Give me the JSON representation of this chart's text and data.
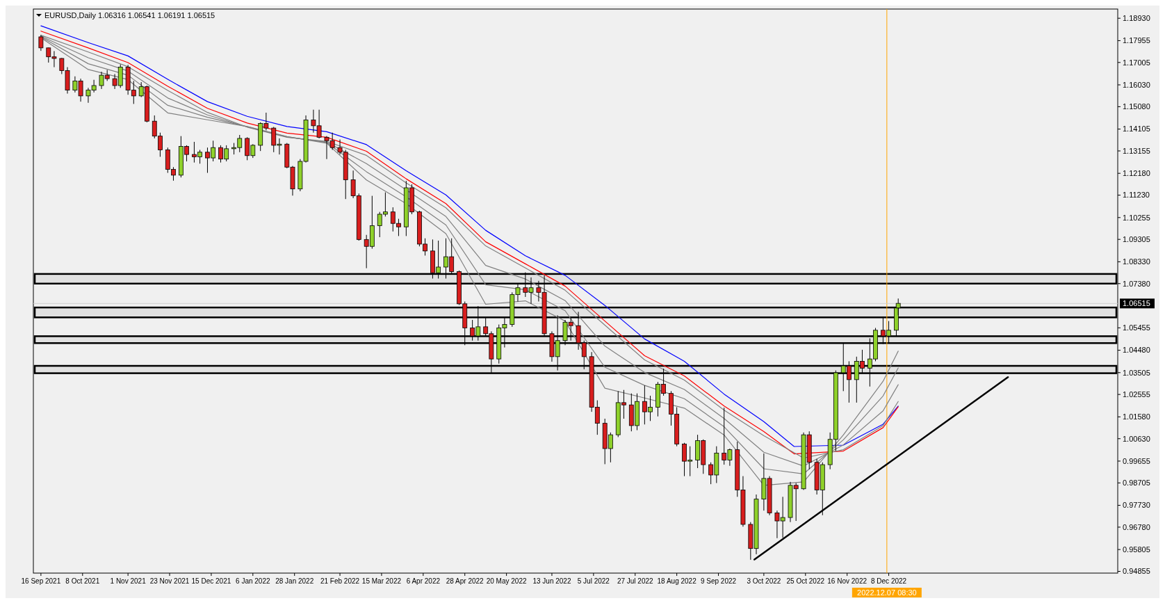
{
  "chart_data": {
    "type": "candlestick",
    "title": "EURUSD,Daily 1.06316 1.06541 1.06191 1.06515",
    "x": [
      "2021-09-16",
      "2021-09-20",
      "2021-09-23",
      "2021-09-27",
      "2021-09-30",
      "2021-10-04",
      "2021-10-07",
      "2021-10-11",
      "2021-10-14",
      "2021-10-18",
      "2021-10-21",
      "2021-10-25",
      "2021-10-28",
      "2021-11-01",
      "2021-11-04",
      "2021-11-08",
      "2021-11-11",
      "2021-11-15",
      "2021-11-18",
      "2021-11-22",
      "2021-11-25",
      "2021-11-29",
      "2021-12-02",
      "2021-12-06",
      "2021-12-09",
      "2021-12-13",
      "2021-12-16",
      "2021-12-20",
      "2021-12-23",
      "2021-12-27",
      "2021-12-30",
      "2022-01-03",
      "2022-01-06",
      "2022-01-10",
      "2022-01-13",
      "2022-01-17",
      "2022-01-20",
      "2022-01-24",
      "2022-01-27",
      "2022-01-31",
      "2022-02-03",
      "2022-02-07",
      "2022-02-10",
      "2022-02-14",
      "2022-02-17",
      "2022-02-21",
      "2022-02-24",
      "2022-02-28",
      "2022-03-03",
      "2022-03-07",
      "2022-03-10",
      "2022-03-14",
      "2022-03-17",
      "2022-03-21",
      "2022-03-24",
      "2022-03-28",
      "2022-03-31",
      "2022-04-04",
      "2022-04-07",
      "2022-04-11",
      "2022-04-14",
      "2022-04-18",
      "2022-04-21",
      "2022-04-25",
      "2022-04-28",
      "2022-05-02",
      "2022-05-05",
      "2022-05-09",
      "2022-05-12",
      "2022-05-16",
      "2022-05-19",
      "2022-05-23",
      "2022-05-26",
      "2022-05-30",
      "2022-06-02",
      "2022-06-06",
      "2022-06-09",
      "2022-06-13",
      "2022-06-16",
      "2022-06-20",
      "2022-06-23",
      "2022-06-27",
      "2022-06-30",
      "2022-07-04",
      "2022-07-07",
      "2022-07-11",
      "2022-07-14",
      "2022-07-18",
      "2022-07-21",
      "2022-07-25",
      "2022-07-28",
      "2022-08-01",
      "2022-08-04",
      "2022-08-08",
      "2022-08-11",
      "2022-08-15",
      "2022-08-18",
      "2022-08-22",
      "2022-08-25",
      "2022-08-29",
      "2022-09-01",
      "2022-09-05",
      "2022-09-08",
      "2022-09-12",
      "2022-09-15",
      "2022-09-19",
      "2022-09-22",
      "2022-09-26",
      "2022-09-29",
      "2022-10-03",
      "2022-10-06",
      "2022-10-10",
      "2022-10-13",
      "2022-10-17",
      "2022-10-20",
      "2022-10-24",
      "2022-10-27",
      "2022-10-31",
      "2022-11-03",
      "2022-11-07",
      "2022-11-10",
      "2022-11-14",
      "2022-11-17",
      "2022-11-21",
      "2022-11-24",
      "2022-11-28",
      "2022-12-01",
      "2022-12-05",
      "2022-12-08",
      "2022-12-12",
      "2022-12-13"
    ],
    "ohlc": [
      [
        1.1812,
        1.182,
        1.1751,
        1.1764
      ],
      [
        1.1764,
        1.1765,
        1.17,
        1.1725
      ],
      [
        1.1725,
        1.175,
        1.168,
        1.1718
      ],
      [
        1.1718,
        1.172,
        1.165,
        1.1665
      ],
      [
        1.1665,
        1.168,
        1.1565,
        1.158
      ],
      [
        1.158,
        1.164,
        1.157,
        1.162
      ],
      [
        1.162,
        1.163,
        1.153,
        1.1555
      ],
      [
        1.1555,
        1.159,
        1.1525,
        1.158
      ],
      [
        1.158,
        1.1625,
        1.157,
        1.16
      ],
      [
        1.16,
        1.166,
        1.1585,
        1.1645
      ],
      [
        1.1645,
        1.1668,
        1.162,
        1.163
      ],
      [
        1.163,
        1.165,
        1.1585,
        1.16
      ],
      [
        1.16,
        1.1692,
        1.159,
        1.168
      ],
      [
        1.168,
        1.169,
        1.156,
        1.158
      ],
      [
        1.158,
        1.162,
        1.152,
        1.1555
      ],
      [
        1.1555,
        1.1615,
        1.155,
        1.1595
      ],
      [
        1.1595,
        1.16,
        1.144,
        1.1445
      ],
      [
        1.1445,
        1.147,
        1.137,
        1.138
      ],
      [
        1.138,
        1.1395,
        1.129,
        1.132
      ],
      [
        1.132,
        1.133,
        1.122,
        1.1235
      ],
      [
        1.1235,
        1.1245,
        1.1186,
        1.121
      ],
      [
        1.121,
        1.138,
        1.12,
        1.1335
      ],
      [
        1.1335,
        1.134,
        1.127,
        1.13
      ],
      [
        1.13,
        1.1355,
        1.1265,
        1.129
      ],
      [
        1.129,
        1.132,
        1.126,
        1.131
      ],
      [
        1.131,
        1.133,
        1.122,
        1.1285
      ],
      [
        1.1285,
        1.136,
        1.127,
        1.133
      ],
      [
        1.133,
        1.134,
        1.1265,
        1.128
      ],
      [
        1.128,
        1.134,
        1.127,
        1.1325
      ],
      [
        1.1325,
        1.135,
        1.13,
        1.133
      ],
      [
        1.133,
        1.1385,
        1.131,
        1.137
      ],
      [
        1.137,
        1.1375,
        1.1275,
        1.1295
      ],
      [
        1.1295,
        1.1345,
        1.1285,
        1.134
      ],
      [
        1.134,
        1.144,
        1.1315,
        1.1435
      ],
      [
        1.1435,
        1.1482,
        1.1405,
        1.1415
      ],
      [
        1.1415,
        1.142,
        1.131,
        1.134
      ],
      [
        1.134,
        1.137,
        1.13,
        1.1345
      ],
      [
        1.1345,
        1.135,
        1.124,
        1.1245
      ],
      [
        1.1245,
        1.125,
        1.1121,
        1.115
      ],
      [
        1.115,
        1.128,
        1.114,
        1.127
      ],
      [
        1.127,
        1.147,
        1.1265,
        1.145
      ],
      [
        1.145,
        1.1495,
        1.1395,
        1.1425
      ],
      [
        1.1425,
        1.1495,
        1.137,
        1.1375
      ],
      [
        1.1375,
        1.138,
        1.128,
        1.136
      ],
      [
        1.136,
        1.1395,
        1.132,
        1.133
      ],
      [
        1.133,
        1.1365,
        1.13,
        1.131
      ],
      [
        1.131,
        1.132,
        1.1106,
        1.119
      ],
      [
        1.119,
        1.123,
        1.111,
        1.112
      ],
      [
        1.112,
        1.113,
        1.0925,
        1.093
      ],
      [
        1.093,
        1.095,
        1.0805,
        1.09
      ],
      [
        1.09,
        1.112,
        1.089,
        1.099
      ],
      [
        1.099,
        1.105,
        1.094,
        1.104
      ],
      [
        1.104,
        1.1135,
        1.103,
        1.105
      ],
      [
        1.105,
        1.107,
        1.0965,
        1.1
      ],
      [
        1.1,
        1.102,
        1.0945,
        1.0985
      ],
      [
        1.0985,
        1.1185,
        1.0945,
        1.1155
      ],
      [
        1.1155,
        1.117,
        1.104,
        1.105
      ],
      [
        1.105,
        1.1055,
        1.09,
        1.091
      ],
      [
        1.091,
        1.0935,
        1.086,
        1.088
      ],
      [
        1.088,
        1.093,
        1.076,
        1.0785
      ],
      [
        1.0785,
        1.0925,
        1.076,
        1.081
      ],
      [
        1.081,
        1.0935,
        1.076,
        1.0855
      ],
      [
        1.0855,
        1.0935,
        1.078,
        1.079
      ],
      [
        1.079,
        1.0795,
        1.0645,
        1.065
      ],
      [
        1.065,
        1.066,
        1.047,
        1.0545
      ],
      [
        1.0545,
        1.058,
        1.049,
        1.051
      ],
      [
        1.051,
        1.064,
        1.049,
        1.055
      ],
      [
        1.055,
        1.059,
        1.051,
        1.052
      ],
      [
        1.052,
        1.053,
        1.035,
        1.041
      ],
      [
        1.041,
        1.056,
        1.039,
        1.0545
      ],
      [
        1.0545,
        1.059,
        1.046,
        1.056
      ],
      [
        1.056,
        1.07,
        1.055,
        1.069
      ],
      [
        1.069,
        1.0735,
        1.066,
        1.072
      ],
      [
        1.072,
        1.0787,
        1.068,
        1.07
      ],
      [
        1.07,
        1.0765,
        1.065,
        1.072
      ],
      [
        1.072,
        1.075,
        1.066,
        1.07
      ],
      [
        1.07,
        1.0775,
        1.051,
        1.052
      ],
      [
        1.052,
        1.053,
        1.0398,
        1.042
      ],
      [
        1.042,
        1.06,
        1.036,
        1.049
      ],
      [
        1.049,
        1.058,
        1.047,
        1.057
      ],
      [
        1.057,
        1.059,
        1.049,
        1.0555
      ],
      [
        1.0555,
        1.0615,
        1.045,
        1.048
      ],
      [
        1.048,
        1.049,
        1.0365,
        1.042
      ],
      [
        1.042,
        1.044,
        1.018,
        1.02
      ],
      [
        1.02,
        1.023,
        1.008,
        1.013
      ],
      [
        1.013,
        1.015,
        0.9952,
        1.002
      ],
      [
        1.002,
        1.009,
        0.996,
        1.008
      ],
      [
        1.008,
        1.027,
        1.007,
        1.022
      ],
      [
        1.022,
        1.0275,
        1.015,
        1.021
      ],
      [
        1.021,
        1.026,
        1.0095,
        1.012
      ],
      [
        1.012,
        1.026,
        1.01,
        1.0225
      ],
      [
        1.0225,
        1.0295,
        1.0125,
        1.018
      ],
      [
        1.018,
        1.025,
        1.014,
        1.02
      ],
      [
        1.02,
        1.031,
        1.016,
        1.03
      ],
      [
        1.03,
        1.0368,
        1.025,
        1.026
      ],
      [
        1.026,
        1.027,
        1.012,
        1.017
      ],
      [
        1.017,
        1.02,
        1.003,
        1.004
      ],
      [
        1.004,
        1.0045,
        0.99,
        0.9965
      ],
      [
        0.9965,
        1.003,
        0.99,
        0.997
      ],
      [
        0.997,
        1.008,
        0.9935,
        1.0055
      ],
      [
        1.0055,
        1.006,
        0.991,
        0.995
      ],
      [
        0.995,
        0.996,
        0.9865,
        0.9905
      ],
      [
        0.9905,
        1.003,
        0.987,
        1.0
      ],
      [
        1.0,
        1.0198,
        0.995,
        0.997
      ],
      [
        0.997,
        1.002,
        0.9945,
        1.0015
      ],
      [
        1.0015,
        1.005,
        0.981,
        0.984
      ],
      [
        0.984,
        0.99,
        0.968,
        0.969
      ],
      [
        0.969,
        0.97,
        0.9536,
        0.9585
      ],
      [
        0.9585,
        0.982,
        0.956,
        0.98
      ],
      [
        0.98,
        0.9999,
        0.975,
        0.989
      ],
      [
        0.989,
        0.99,
        0.973,
        0.974
      ],
      [
        0.974,
        0.975,
        0.963,
        0.9705
      ],
      [
        0.9705,
        0.981,
        0.9632,
        0.972
      ],
      [
        0.972,
        0.9875,
        0.97,
        0.986
      ],
      [
        0.986,
        0.987,
        0.9705,
        0.9845
      ],
      [
        0.9845,
        1.009,
        0.984,
        1.008
      ],
      [
        1.008,
        1.0095,
        0.993,
        0.996
      ],
      [
        0.996,
        0.9975,
        0.982,
        0.984
      ],
      [
        0.984,
        0.996,
        0.973,
        0.995
      ],
      [
        0.995,
        1.009,
        0.993,
        1.006
      ],
      [
        1.006,
        1.036,
        1.001,
        1.035
      ],
      [
        1.035,
        1.0481,
        1.027,
        1.038
      ],
      [
        1.038,
        1.04,
        1.022,
        1.032
      ],
      [
        1.032,
        1.042,
        1.022,
        1.04
      ],
      [
        1.04,
        1.045,
        1.035,
        1.037
      ],
      [
        1.037,
        1.05,
        1.029,
        1.041
      ],
      [
        1.041,
        1.0545,
        1.04,
        1.0535
      ],
      [
        1.0535,
        1.0595,
        1.0475,
        1.051
      ],
      [
        1.051,
        1.0575,
        1.048,
        1.0535
      ],
      [
        1.0535,
        1.064,
        1.051,
        1.0632
      ],
      [
        1.0632,
        1.0673,
        1.06,
        1.0652
      ]
    ],
    "series": [
      {
        "type": "line",
        "color": "#0000ff",
        "x": [
          "2021-09-16",
          "2021-10-11",
          "2021-11-01",
          "2021-11-22",
          "2021-12-13",
          "2022-01-03",
          "2022-01-24",
          "2022-02-14",
          "2022-03-07",
          "2022-03-28",
          "2022-04-18",
          "2022-05-09",
          "2022-05-30",
          "2022-06-20",
          "2022-07-11",
          "2022-08-01",
          "2022-08-22",
          "2022-09-12",
          "2022-10-03",
          "2022-10-19",
          "2022-11-14",
          "2022-12-05",
          "2022-12-13"
        ],
        "values": [
          1.186,
          1.1787,
          1.1729,
          1.1627,
          1.153,
          1.1466,
          1.1422,
          1.1399,
          1.1343,
          1.1229,
          1.1124,
          1.097,
          1.0859,
          1.0774,
          1.0643,
          1.0497,
          1.04,
          1.0257,
          1.0137,
          1.0029,
          1.0035,
          1.0126,
          1.0205
        ]
      },
      {
        "type": "line",
        "color": "#ff0000",
        "x": [
          "2021-09-16",
          "2021-10-11",
          "2021-11-01",
          "2021-11-22",
          "2021-12-13",
          "2022-01-03",
          "2022-01-24",
          "2022-02-14",
          "2022-03-07",
          "2022-03-28",
          "2022-04-18",
          "2022-05-09",
          "2022-05-30",
          "2022-06-20",
          "2022-07-11",
          "2022-08-01",
          "2022-08-22",
          "2022-09-12",
          "2022-10-03",
          "2022-10-19",
          "2022-11-14",
          "2022-12-05",
          "2022-12-13"
        ],
        "values": [
          1.1837,
          1.1764,
          1.17,
          1.1597,
          1.1501,
          1.1437,
          1.1393,
          1.1375,
          1.1314,
          1.1194,
          1.1086,
          1.092,
          1.0824,
          1.0727,
          1.0575,
          1.0424,
          1.0336,
          1.0205,
          1.0094,
          0.9997,
          1.0009,
          1.0111,
          1.0202
        ]
      },
      {
        "type": "line",
        "color": "#808080",
        "x": [
          "2021-09-16",
          "2021-10-11",
          "2021-11-01",
          "2021-11-22",
          "2021-12-13",
          "2022-01-03",
          "2022-01-24",
          "2022-02-14",
          "2022-03-07",
          "2022-03-28",
          "2022-04-18",
          "2022-05-09",
          "2022-05-30",
          "2022-06-20",
          "2022-07-11",
          "2022-08-01",
          "2022-08-22",
          "2022-09-12",
          "2022-10-03",
          "2022-10-24",
          "2022-11-14",
          "2022-12-05",
          "2022-12-13"
        ],
        "values": [
          1.1819,
          1.1746,
          1.1682,
          1.1579,
          1.1483,
          1.1419,
          1.1375,
          1.1357,
          1.1296,
          1.1176,
          1.1068,
          1.0902,
          1.0806,
          1.0709,
          1.0557,
          1.0406,
          1.0318,
          1.0187,
          1.0076,
          0.9979,
          1.0015,
          1.012,
          1.0225
        ]
      },
      {
        "type": "line",
        "color": "#808080",
        "x": [
          "2021-09-16",
          "2021-10-11",
          "2021-11-01",
          "2021-11-22",
          "2021-12-13",
          "2022-01-03",
          "2022-01-24",
          "2022-02-14",
          "2022-03-07",
          "2022-03-28",
          "2022-04-18",
          "2022-05-09",
          "2022-05-30",
          "2022-06-20",
          "2022-07-11",
          "2022-08-01",
          "2022-08-22",
          "2022-09-12",
          "2022-10-03",
          "2022-10-24",
          "2022-11-14",
          "2022-12-05",
          "2022-12-13"
        ],
        "values": [
          1.1815,
          1.1721,
          1.1663,
          1.1546,
          1.1472,
          1.142,
          1.1376,
          1.1354,
          1.126,
          1.1146,
          1.103,
          1.0817,
          1.0758,
          1.0664,
          1.0466,
          1.0351,
          1.0277,
          1.0151,
          1.0004,
          0.9944,
          1.0036,
          1.0184,
          1.0298
        ]
      },
      {
        "type": "line",
        "color": "#808080",
        "x": [
          "2021-09-16",
          "2021-10-11",
          "2021-11-01",
          "2021-11-22",
          "2021-12-13",
          "2022-01-03",
          "2022-01-24",
          "2022-02-14",
          "2022-03-07",
          "2022-03-28",
          "2022-04-18",
          "2022-05-09",
          "2022-05-30",
          "2022-06-20",
          "2022-07-11",
          "2022-08-01",
          "2022-08-22",
          "2022-09-12",
          "2022-10-03",
          "2022-10-24",
          "2022-11-14",
          "2022-12-05",
          "2022-12-13"
        ],
        "values": [
          1.1812,
          1.1695,
          1.1645,
          1.1514,
          1.1462,
          1.1421,
          1.1377,
          1.1352,
          1.1225,
          1.1116,
          1.0993,
          1.0733,
          1.0711,
          1.062,
          1.0374,
          1.0295,
          1.0237,
          1.0115,
          0.9932,
          0.991,
          1.0058,
          1.0249,
          1.0371
        ]
      },
      {
        "type": "line",
        "color": "#808080",
        "x": [
          "2021-09-16",
          "2021-10-11",
          "2021-11-01",
          "2021-11-22",
          "2021-12-13",
          "2022-01-03",
          "2022-01-24",
          "2022-02-14",
          "2022-03-07",
          "2022-03-28",
          "2022-04-18",
          "2022-05-09",
          "2022-05-30",
          "2022-06-20",
          "2022-07-11",
          "2022-08-01",
          "2022-08-22",
          "2022-09-12",
          "2022-10-03",
          "2022-10-24",
          "2022-11-14",
          "2022-12-05",
          "2022-12-13"
        ],
        "values": [
          1.1808,
          1.167,
          1.1626,
          1.1481,
          1.1451,
          1.1422,
          1.1378,
          1.1349,
          1.1189,
          1.1086,
          1.0955,
          1.0648,
          1.0663,
          1.0575,
          1.0283,
          1.024,
          1.0196,
          1.0079,
          0.986,
          0.9875,
          1.0079,
          1.0313,
          1.0444
        ]
      },
      {
        "type": "line",
        "color": "#000000",
        "x": [
          "2022-09-28",
          "2023-02-09"
        ],
        "values": [
          0.9537,
          1.0331
        ]
      }
    ],
    "xlim": [
      "2021-09-12",
      "2023-04-08"
    ],
    "xticks": [
      {
        "value": "2021-09-16",
        "label": "16 Sep 2021"
      },
      {
        "value": "2021-10-08",
        "label": "8 Oct 2021"
      },
      {
        "value": "2021-11-01",
        "label": "1 Nov 2021"
      },
      {
        "value": "2021-11-23",
        "label": "23 Nov 2021"
      },
      {
        "value": "2021-12-15",
        "label": "15 Dec 2021"
      },
      {
        "value": "2022-01-06",
        "label": "6 Jan 2022"
      },
      {
        "value": "2022-01-28",
        "label": "28 Jan 2022"
      },
      {
        "value": "2022-02-21",
        "label": "21 Feb 2022"
      },
      {
        "value": "2022-03-15",
        "label": "15 Mar 2022"
      },
      {
        "value": "2022-04-06",
        "label": "6 Apr 2022"
      },
      {
        "value": "2022-04-28",
        "label": "28 Apr 2022"
      },
      {
        "value": "2022-05-20",
        "label": "20 May 2022"
      },
      {
        "value": "2022-06-13",
        "label": "13 Jun 2022"
      },
      {
        "value": "2022-07-05",
        "label": "5 Jul 2022"
      },
      {
        "value": "2022-07-27",
        "label": "27 Jul 2022"
      },
      {
        "value": "2022-08-18",
        "label": "18 Aug 2022"
      },
      {
        "value": "2022-09-09",
        "label": "9 Sep 2022"
      },
      {
        "value": "2022-10-03",
        "label": "3 Oct 2022"
      },
      {
        "value": "2022-10-25",
        "label": "25 Oct 2022"
      },
      {
        "value": "2022-11-16",
        "label": "16 Nov 2022"
      },
      {
        "value": "2022-12-08",
        "label": "8 Dec 2022"
      }
    ],
    "ylim": [
      0.9478,
      1.1933
    ],
    "yticks": [
      {
        "value": 1.1893,
        "label": "1.18930"
      },
      {
        "value": 1.17955,
        "label": "1.17955"
      },
      {
        "value": 1.17005,
        "label": "1.17005"
      },
      {
        "value": 1.1603,
        "label": "1.16030"
      },
      {
        "value": 1.1508,
        "label": "1.15080"
      },
      {
        "value": 1.14105,
        "label": "1.14105"
      },
      {
        "value": 1.13155,
        "label": "1.13155"
      },
      {
        "value": 1.1218,
        "label": "1.12180"
      },
      {
        "value": 1.1123,
        "label": "1.11230"
      },
      {
        "value": 1.10255,
        "label": "1.10255"
      },
      {
        "value": 1.09305,
        "label": "1.09305"
      },
      {
        "value": 1.0833,
        "label": "1.08330"
      },
      {
        "value": 1.0738,
        "label": "1.07380"
      },
      {
        "value": 1.05455,
        "label": "1.05455"
      },
      {
        "value": 1.0448,
        "label": "1.04480"
      },
      {
        "value": 1.03505,
        "label": "1.03505"
      },
      {
        "value": 1.02555,
        "label": "1.02555"
      },
      {
        "value": 1.0158,
        "label": "1.01580"
      },
      {
        "value": 1.0063,
        "label": "1.00630"
      },
      {
        "value": 0.99655,
        "label": "0.99655"
      },
      {
        "value": 0.98705,
        "label": "0.98705"
      },
      {
        "value": 0.9773,
        "label": "0.97730"
      },
      {
        "value": 0.9678,
        "label": "0.96780"
      },
      {
        "value": 0.95805,
        "label": "0.95805"
      },
      {
        "value": 0.94855,
        "label": "0.94855"
      }
    ],
    "ref_lines": [
      {
        "axis": "x",
        "value": "2022-12-07",
        "label": "2022.12.07 08:30",
        "color": "#ffa500"
      },
      {
        "axis": "y",
        "value": 1.06515,
        "label": "1.06515",
        "color": "#d0d0d0"
      }
    ],
    "bands": [
      {
        "axis": "y",
        "from": 1.0738,
        "to": 1.078,
        "color": "#000000"
      },
      {
        "axis": "y",
        "from": 1.0591,
        "to": 1.0634,
        "color": "#000000"
      },
      {
        "axis": "y",
        "from": 1.0479,
        "to": 1.0509,
        "color": "#000000"
      },
      {
        "axis": "y",
        "from": 1.0348,
        "to": 1.038,
        "color": "#000000"
      }
    ]
  }
}
